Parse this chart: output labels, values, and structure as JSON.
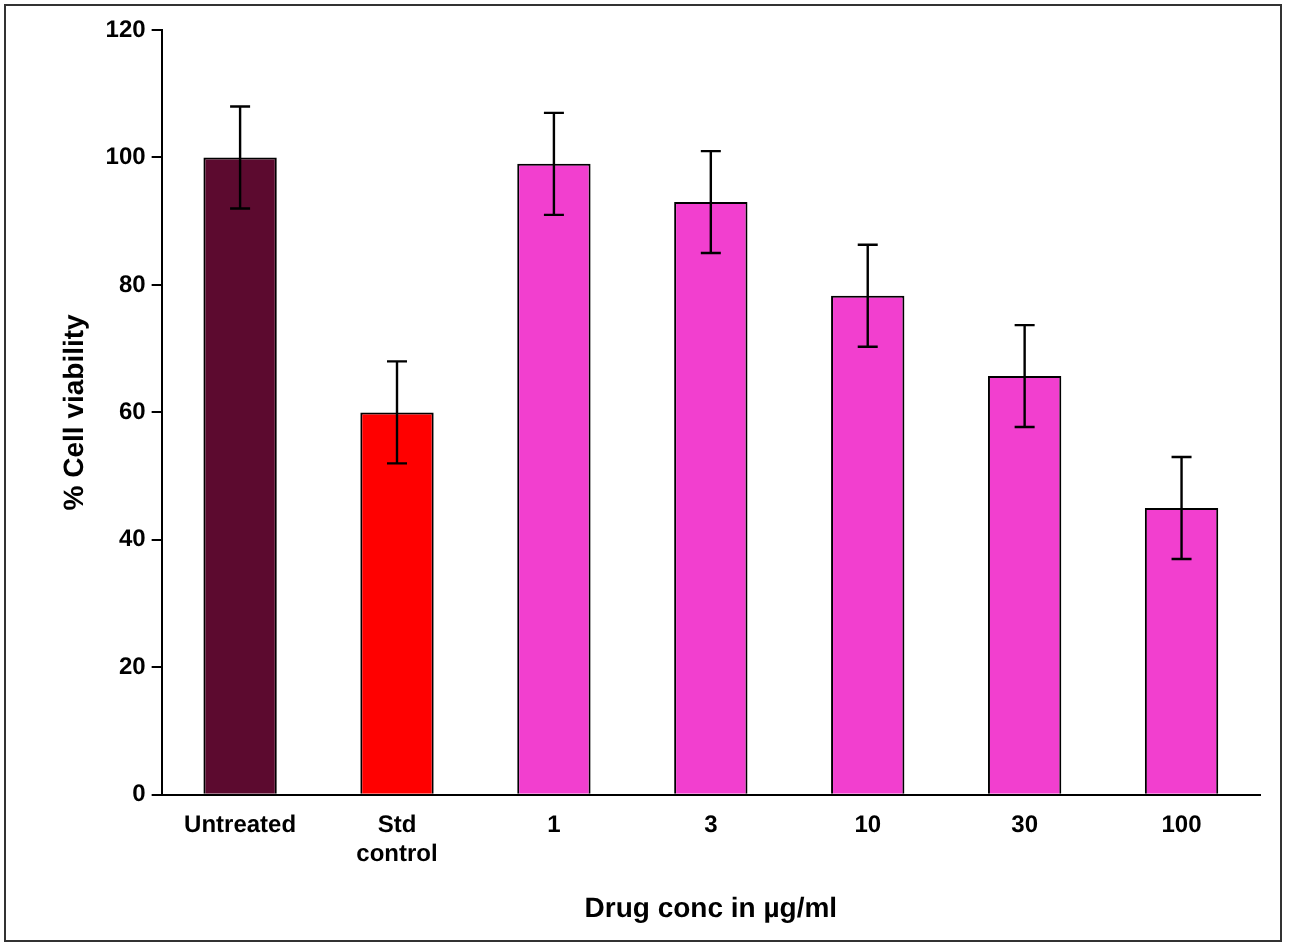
{
  "chart_data": {
    "type": "bar",
    "xlabel": "Drug conc in µg/ml",
    "ylabel": "% Cell viability",
    "categories": [
      "Untreated",
      "Std control",
      "1",
      "3",
      "10",
      "30",
      "100"
    ],
    "values": [
      100,
      60,
      99,
      93,
      78.3,
      65.7,
      45
    ],
    "colors": [
      "#5c0a2f",
      "#ff0000",
      "#f23fcf",
      "#f23fcf",
      "#f23fcf",
      "#f23fcf",
      "#f23fcf"
    ],
    "errors": [
      8,
      8,
      8,
      8,
      8,
      8,
      8
    ],
    "ylim": [
      0,
      120
    ],
    "yticks": [
      0,
      20,
      40,
      60,
      80,
      100,
      120
    ],
    "grid": false,
    "legend": false
  }
}
